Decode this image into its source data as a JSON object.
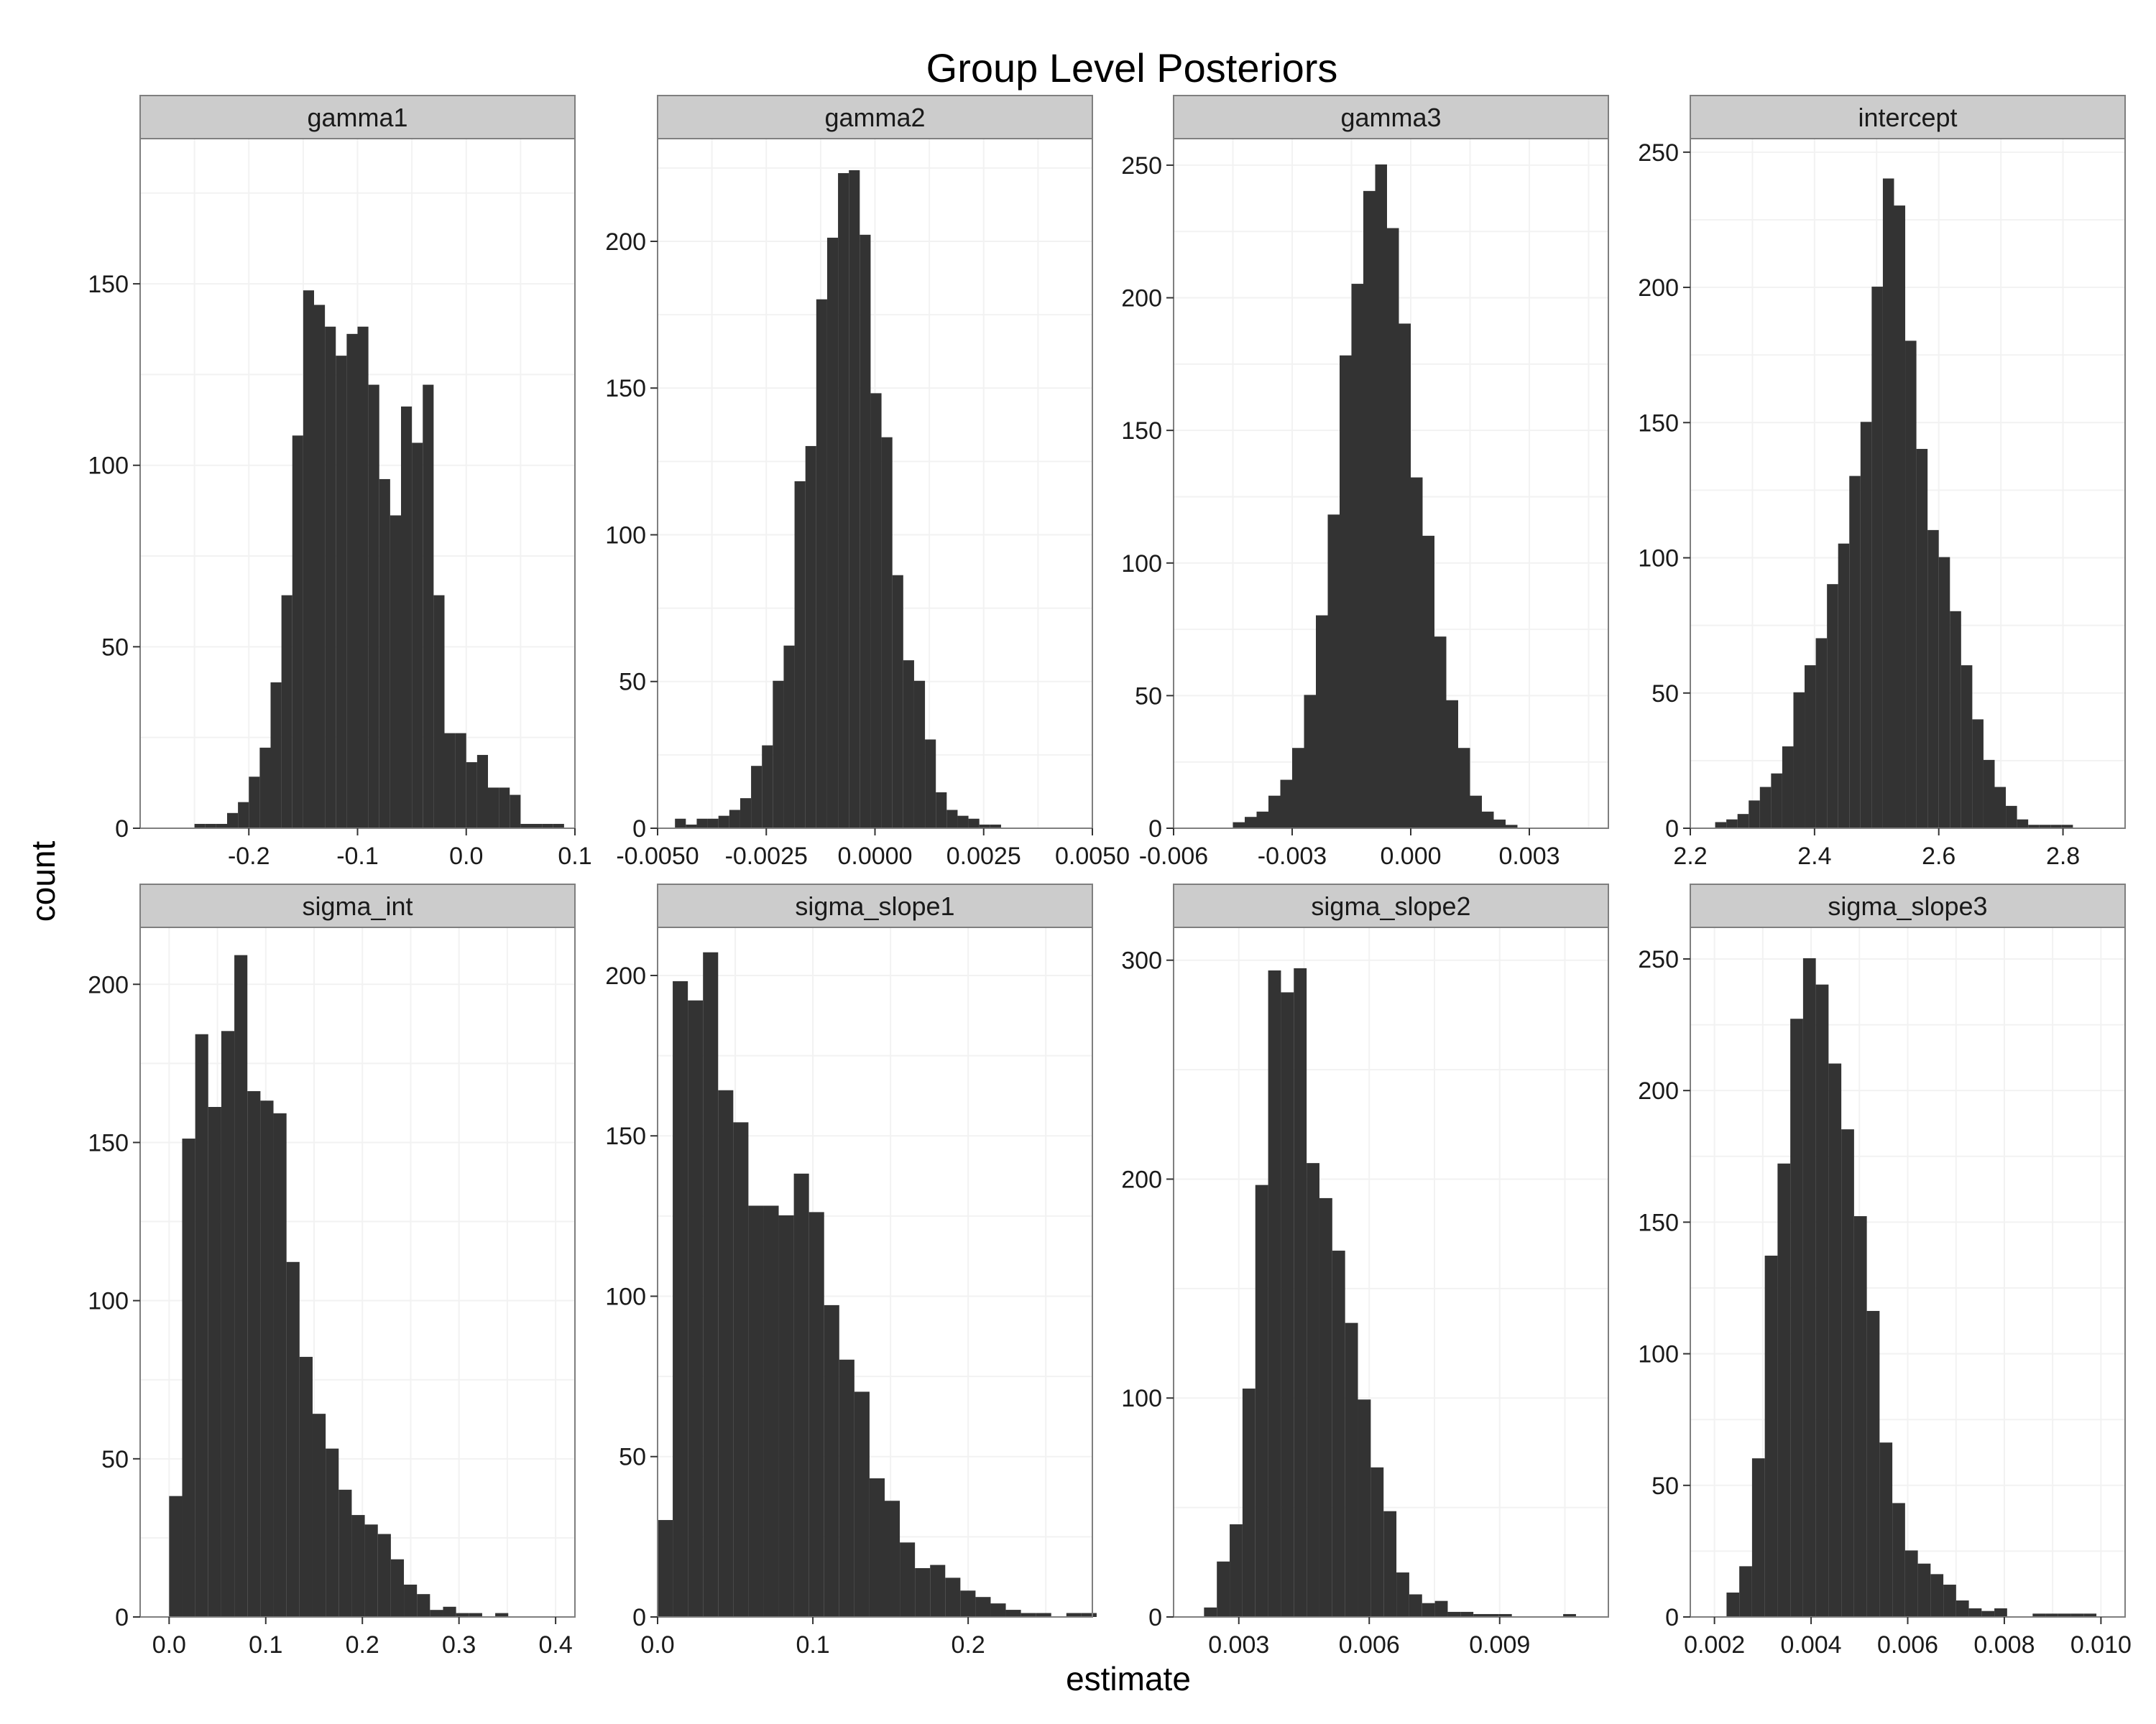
{
  "title": "Group Level Posteriors",
  "xlabel": "estimate",
  "ylabel": "count",
  "colors": {
    "bar": "#333333",
    "strip": "#cccccc",
    "grid": "#f2f2f2",
    "border": "#7f7f7f"
  },
  "chart_data": [
    {
      "type": "bar",
      "panel": "gamma1",
      "xlim": [
        -0.3,
        0.1
      ],
      "ylim": [
        0,
        190
      ],
      "x_ticks": [
        "-0.2",
        "-0.1",
        "0.0",
        "0.1"
      ],
      "x_tick_values": [
        -0.2,
        -0.1,
        0.0,
        0.1
      ],
      "y_ticks": [
        "0",
        "50",
        "100",
        "150"
      ],
      "y_tick_values": [
        0,
        50,
        100,
        150
      ],
      "bin_start": -0.25,
      "bin_width": 0.01,
      "values": [
        1,
        1,
        1,
        4,
        7,
        14,
        22,
        40,
        64,
        108,
        148,
        144,
        138,
        130,
        136,
        138,
        122,
        96,
        86,
        116,
        106,
        122,
        64,
        26,
        26,
        18,
        20,
        11,
        11,
        9,
        1,
        1,
        1,
        1
      ]
    },
    {
      "type": "bar",
      "panel": "gamma2",
      "xlim": [
        -0.005,
        0.005
      ],
      "ylim": [
        0,
        235
      ],
      "x_ticks": [
        "-0.0050",
        "-0.0025",
        "0.0000",
        "0.0025",
        "0.0050"
      ],
      "x_tick_values": [
        -0.005,
        -0.0025,
        0.0,
        0.0025,
        0.005
      ],
      "y_ticks": [
        "0",
        "50",
        "100",
        "150",
        "200"
      ],
      "y_tick_values": [
        0,
        50,
        100,
        150,
        200
      ],
      "bin_start": -0.0046,
      "bin_width": 0.00025,
      "values": [
        3,
        1,
        3,
        3,
        4,
        6,
        10,
        21,
        28,
        50,
        62,
        118,
        130,
        180,
        201,
        223,
        224,
        202,
        148,
        133,
        86,
        57,
        50,
        30,
        12,
        6,
        4,
        3,
        1,
        1
      ]
    },
    {
      "type": "bar",
      "panel": "gamma3",
      "xlim": [
        -0.006,
        0.005
      ],
      "ylim": [
        0,
        260
      ],
      "x_ticks": [
        "-0.006",
        "-0.003",
        "0.000",
        "0.003"
      ],
      "x_tick_values": [
        -0.006,
        -0.003,
        0.0,
        0.003
      ],
      "y_ticks": [
        "0",
        "50",
        "100",
        "150",
        "200",
        "250"
      ],
      "y_tick_values": [
        0,
        50,
        100,
        150,
        200,
        250
      ],
      "bin_start": -0.0045,
      "bin_width": 0.0003,
      "values": [
        2,
        4,
        6,
        12,
        18,
        30,
        50,
        80,
        118,
        178,
        205,
        240,
        250,
        226,
        190,
        132,
        110,
        72,
        48,
        30,
        12,
        6,
        3,
        1
      ]
    },
    {
      "type": "bar",
      "panel": "intercept",
      "xlim": [
        2.2,
        2.9
      ],
      "ylim": [
        0,
        255
      ],
      "x_ticks": [
        "2.2",
        "2.4",
        "2.6",
        "2.8"
      ],
      "x_tick_values": [
        2.2,
        2.4,
        2.6,
        2.8
      ],
      "y_ticks": [
        "0",
        "50",
        "100",
        "150",
        "200",
        "250"
      ],
      "y_tick_values": [
        0,
        50,
        100,
        150,
        200,
        250
      ],
      "bin_start": 2.24,
      "bin_width": 0.018,
      "values": [
        2,
        3,
        5,
        10,
        15,
        20,
        30,
        50,
        60,
        70,
        90,
        105,
        130,
        150,
        200,
        240,
        230,
        180,
        140,
        110,
        100,
        80,
        60,
        40,
        25,
        15,
        8,
        3,
        1,
        1,
        1,
        1
      ]
    },
    {
      "type": "bar",
      "panel": "sigma_int",
      "xlim": [
        -0.03,
        0.42
      ],
      "ylim": [
        0,
        218
      ],
      "x_ticks": [
        "0.0",
        "0.1",
        "0.2",
        "0.3",
        "0.4"
      ],
      "x_tick_values": [
        0.0,
        0.1,
        0.2,
        0.3,
        0.4
      ],
      "y_ticks": [
        "0",
        "50",
        "100",
        "150",
        "200"
      ],
      "y_tick_values": [
        0,
        50,
        100,
        150,
        200
      ],
      "bin_start": 0.0,
      "bin_width": 0.0135,
      "values": [
        38,
        151,
        184,
        161,
        185,
        209,
        166,
        163,
        159,
        112,
        82,
        64,
        53,
        40,
        32,
        29,
        26,
        18,
        10,
        7,
        2,
        3,
        1,
        1,
        0,
        1
      ]
    },
    {
      "type": "bar",
      "panel": "sigma_slope1",
      "xlim": [
        0.0,
        0.28
      ],
      "ylim": [
        0,
        215
      ],
      "x_ticks": [
        "0.0",
        "0.1",
        "0.2"
      ],
      "x_tick_values": [
        0.0,
        0.1,
        0.2
      ],
      "y_ticks": [
        "0",
        "50",
        "100",
        "150",
        "200"
      ],
      "y_tick_values": [
        0,
        50,
        100,
        150,
        200
      ],
      "bin_start": 0.0,
      "bin_width": 0.00975,
      "values": [
        30,
        198,
        192,
        207,
        164,
        154,
        128,
        128,
        125,
        138,
        126,
        97,
        80,
        70,
        43,
        36,
        23,
        15,
        16,
        12,
        8,
        6,
        4,
        2,
        1,
        1,
        0,
        1,
        1
      ]
    },
    {
      "type": "bar",
      "panel": "sigma_slope2",
      "xlim": [
        0.0015,
        0.0115
      ],
      "ylim": [
        0,
        315
      ],
      "x_ticks": [
        "0.003",
        "0.006",
        "0.009"
      ],
      "x_tick_values": [
        0.003,
        0.006,
        0.009
      ],
      "y_ticks": [
        "0",
        "100",
        "200",
        "300"
      ],
      "y_tick_values": [
        0,
        100,
        200,
        300
      ],
      "bin_start": 0.0022,
      "bin_width": 0.000295,
      "values": [
        4,
        25,
        42,
        104,
        197,
        295,
        285,
        296,
        207,
        191,
        167,
        134,
        99,
        68,
        48,
        20,
        10,
        6,
        7,
        2,
        2,
        1,
        1,
        1,
        0,
        0,
        0,
        0,
        1
      ]
    },
    {
      "type": "bar",
      "panel": "sigma_slope3",
      "xlim": [
        0.0015,
        0.0105
      ],
      "ylim": [
        0,
        262
      ],
      "x_ticks": [
        "0.002",
        "0.004",
        "0.006",
        "0.008",
        "0.010"
      ],
      "x_tick_values": [
        0.002,
        0.004,
        0.006,
        0.008,
        0.01
      ],
      "y_ticks": [
        "0",
        "50",
        "100",
        "150",
        "200",
        "250"
      ],
      "y_tick_values": [
        0,
        50,
        100,
        150,
        200,
        250
      ],
      "bin_start": 0.00225,
      "bin_width": 0.000264,
      "values": [
        9,
        19,
        60,
        137,
        172,
        227,
        250,
        240,
        210,
        185,
        152,
        116,
        66,
        43,
        25,
        20,
        16,
        12,
        6,
        3,
        2,
        3,
        0,
        0,
        1,
        1,
        1,
        1,
        1
      ]
    }
  ]
}
